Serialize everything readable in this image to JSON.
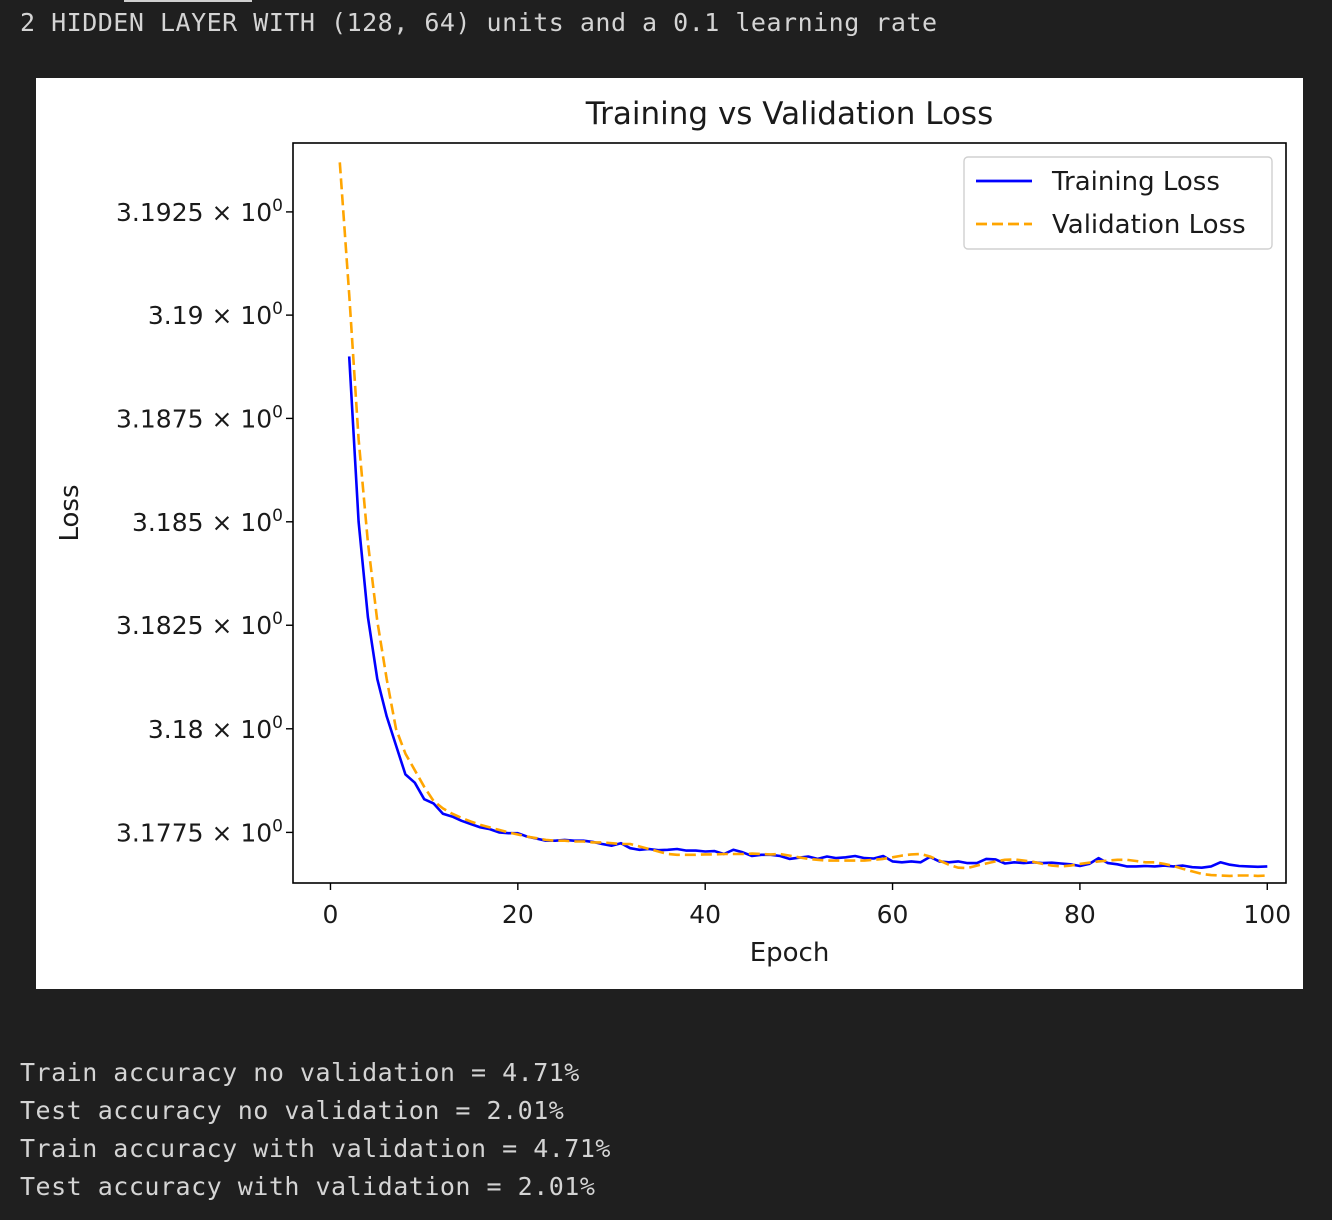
{
  "header": {
    "text": "2 HIDDEN LAYER WITH (128, 64) units and a 0.1 learning rate"
  },
  "chart_data": {
    "type": "line",
    "title": "Training vs Validation Loss",
    "xlabel": "Epoch",
    "ylabel": "Loss",
    "xlim": [
      -4,
      102
    ],
    "ylim": [
      3.17628,
      3.19417
    ],
    "y_scale": "log",
    "grid": false,
    "legend_position": "top-right",
    "x_ticks": [
      0,
      20,
      40,
      60,
      80,
      100
    ],
    "x_tick_labels": [
      "0",
      "20",
      "40",
      "60",
      "80",
      "100"
    ],
    "y_ticks": [
      3.1775,
      3.18,
      3.1825,
      3.185,
      3.1875,
      3.19,
      3.1925
    ],
    "y_tick_mantissas": [
      "3.1775",
      "3.18",
      "3.1825",
      "3.185",
      "3.1875",
      "3.19",
      "3.1925"
    ],
    "y_tick_exponent_base": "× 10",
    "y_tick_exponent": "0",
    "series": [
      {
        "name": "Training Loss",
        "color": "#0000ff",
        "style": "solid",
        "x": [
          2,
          3,
          4,
          5,
          6,
          7,
          8,
          9,
          10,
          11,
          12,
          13,
          14,
          15,
          16,
          17,
          18,
          19,
          20,
          21,
          22,
          23,
          24,
          25,
          26,
          27,
          28,
          29,
          30,
          31,
          32,
          33,
          34,
          35,
          36,
          37,
          38,
          39,
          40,
          41,
          42,
          43,
          44,
          45,
          46,
          47,
          48,
          49,
          50,
          51,
          52,
          53,
          54,
          55,
          56,
          57,
          58,
          59,
          60,
          61,
          62,
          63,
          64,
          65,
          66,
          67,
          68,
          69,
          70,
          71,
          72,
          73,
          74,
          75,
          76,
          77,
          78,
          79,
          80,
          81,
          82,
          83,
          84,
          85,
          86,
          87,
          88,
          89,
          90,
          91,
          92,
          93,
          94,
          95,
          96,
          97,
          98,
          99,
          100
        ],
        "y": [
          3.189,
          3.185,
          3.1827,
          3.1812,
          3.1803,
          3.1796,
          3.1789,
          3.1787,
          3.1783,
          3.1782,
          3.17795,
          3.17788,
          3.17778,
          3.1777,
          3.17762,
          3.17758,
          3.1775,
          3.17748,
          3.17748,
          3.1774,
          3.17735,
          3.1773,
          3.1773,
          3.17732,
          3.1773,
          3.1773,
          3.17727,
          3.17722,
          3.17718,
          3.17724,
          3.17712,
          3.17708,
          3.1771,
          3.17707,
          3.17708,
          3.1771,
          3.17706,
          3.17706,
          3.17704,
          3.17705,
          3.17698,
          3.17708,
          3.17702,
          3.17693,
          3.17696,
          3.17696,
          3.17693,
          3.17686,
          3.17689,
          3.17692,
          3.17686,
          3.17692,
          3.17688,
          3.1769,
          3.17693,
          3.17688,
          3.17687,
          3.17693,
          3.1768,
          3.17678,
          3.1768,
          3.17678,
          3.17691,
          3.1768,
          3.17678,
          3.1768,
          3.17676,
          3.17676,
          3.17686,
          3.17685,
          3.17675,
          3.17678,
          3.17676,
          3.17678,
          3.17676,
          3.17677,
          3.17675,
          3.17673,
          3.17669,
          3.17674,
          3.17688,
          3.17676,
          3.17673,
          3.17668,
          3.17668,
          3.17669,
          3.17668,
          3.1767,
          3.17668,
          3.1767,
          3.17666,
          3.17665,
          3.17668,
          3.17678,
          3.17672,
          3.17669,
          3.17668,
          3.17667,
          3.17668
        ]
      },
      {
        "name": "Validation Loss",
        "color": "#ffa500",
        "style": "dashed",
        "x": [
          1,
          2,
          3,
          4,
          5,
          6,
          7,
          8,
          9,
          10,
          11,
          12,
          13,
          14,
          15,
          16,
          17,
          18,
          19,
          20,
          21,
          22,
          23,
          24,
          25,
          26,
          27,
          28,
          29,
          30,
          31,
          32,
          33,
          34,
          35,
          36,
          37,
          38,
          39,
          40,
          41,
          42,
          43,
          44,
          45,
          46,
          47,
          48,
          49,
          50,
          51,
          52,
          53,
          54,
          55,
          56,
          57,
          58,
          59,
          60,
          61,
          62,
          63,
          64,
          65,
          66,
          67,
          68,
          69,
          70,
          71,
          72,
          73,
          74,
          75,
          76,
          77,
          78,
          79,
          80,
          81,
          82,
          83,
          84,
          85,
          86,
          87,
          88,
          89,
          90,
          91,
          92,
          93,
          94,
          95,
          96,
          97,
          98,
          99,
          100
        ],
        "y": [
          3.1937,
          3.1905,
          3.187,
          3.1845,
          3.1826,
          3.1812,
          3.18,
          3.1794,
          3.179,
          3.1786,
          3.17826,
          3.17808,
          3.17795,
          3.17785,
          3.17776,
          3.17768,
          3.17762,
          3.17756,
          3.1775,
          3.17745,
          3.1774,
          3.17736,
          3.17732,
          3.1773,
          3.1773,
          3.17728,
          3.17728,
          3.17726,
          3.17726,
          3.17724,
          3.17722,
          3.17722,
          3.17716,
          3.1771,
          3.17704,
          3.17698,
          3.17696,
          3.17696,
          3.17696,
          3.17697,
          3.17697,
          3.17698,
          3.17698,
          3.17698,
          3.17699,
          3.17698,
          3.17697,
          3.17698,
          3.17694,
          3.1769,
          3.17686,
          3.17684,
          3.17682,
          3.17682,
          3.17682,
          3.17682,
          3.17682,
          3.17684,
          3.17686,
          3.1769,
          3.17694,
          3.17697,
          3.17698,
          3.17692,
          3.17682,
          3.17672,
          3.17665,
          3.17664,
          3.1767,
          3.17675,
          3.1768,
          3.17684,
          3.17685,
          3.17682,
          3.17679,
          3.17674,
          3.1767,
          3.17668,
          3.1767,
          3.17674,
          3.17677,
          3.1768,
          3.17682,
          3.17684,
          3.17684,
          3.17681,
          3.17678,
          3.17678,
          3.17674,
          3.17669,
          3.17662,
          3.17656,
          3.1765,
          3.17647,
          3.17646,
          3.17645,
          3.17646,
          3.17646,
          3.17645,
          3.17646
        ]
      }
    ]
  },
  "output": {
    "lines": [
      "Train accuracy no validation = 4.71%",
      "Test accuracy no validation = 2.01%",
      "Train accuracy with validation = 4.71%",
      "Test accuracy with validation = 2.01%"
    ]
  }
}
